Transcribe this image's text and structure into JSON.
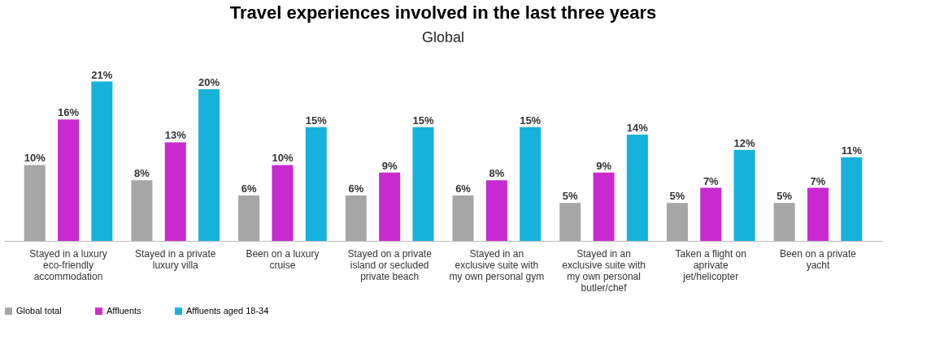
{
  "chart_data": {
    "type": "bar",
    "title": "Travel experiences involved in the last three years",
    "subtitle": "Global",
    "categories": [
      "Stayed in a luxury eco-friendly accommodation",
      "Stayed in a private luxury villa",
      "Been on a luxury cruise",
      "Stayed on a private island or secluded private beach",
      "Stayed in an exclusive suite with my own personal gym",
      "Stayed in an exclusive suite with my own personal butler/chef",
      "Taken a flight on aprivate jet/helicopter",
      "Been on a private yacht"
    ],
    "series": [
      {
        "name": "Global total",
        "color": "#a6a6a6",
        "values": [
          10,
          8,
          6,
          6,
          6,
          5,
          5,
          5
        ],
        "value_labels": [
          "10%",
          "8%",
          "6%",
          "6%",
          "6%",
          "5%",
          "5%",
          "5%"
        ]
      },
      {
        "name": "Affluents",
        "color": "#c92ad0",
        "values": [
          16,
          13,
          10,
          9,
          8,
          9,
          7,
          7
        ],
        "value_labels": [
          "16%",
          "13%",
          "10%",
          "9%",
          "8%",
          "9%",
          "7%",
          "7%"
        ]
      },
      {
        "name": "Affluents aged 18-34",
        "color": "#17b2dc",
        "values": [
          21,
          20,
          15,
          15,
          15,
          14,
          12,
          11
        ],
        "value_labels": [
          "21%",
          "20%",
          "15%",
          "15%",
          "15%",
          "14%",
          "12%",
          "11%"
        ]
      }
    ],
    "legend": "bottom",
    "grid": false
  }
}
